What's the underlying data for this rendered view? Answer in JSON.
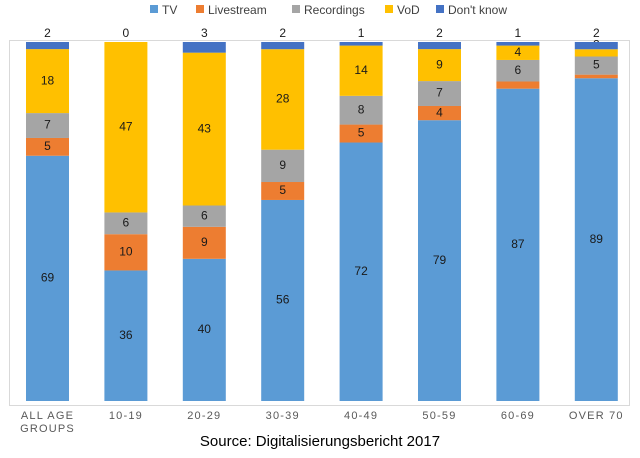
{
  "chart_data": {
    "type": "bar",
    "stacked": true,
    "percent": true,
    "categories": [
      "ALL AGE GROUPS",
      "10-19",
      "20-29",
      "30-39",
      "40-49",
      "50-59",
      "60-69",
      "OVER 70"
    ],
    "category_lines": [
      [
        "ALL AGE",
        "GROUPS"
      ],
      [
        "10-19"
      ],
      [
        "20-29"
      ],
      [
        "30-39"
      ],
      [
        "40-49"
      ],
      [
        "50-59"
      ],
      [
        "60-69"
      ],
      [
        "OVER 70"
      ]
    ],
    "series": [
      {
        "name": "TV",
        "color": "#5B9BD5",
        "values": [
          69,
          36,
          40,
          56,
          72,
          79,
          87,
          89
        ]
      },
      {
        "name": "Livestream",
        "color": "#ED7D31",
        "values": [
          5,
          10,
          9,
          5,
          5,
          4,
          2,
          1
        ]
      },
      {
        "name": "Recordings",
        "color": "#A5A5A5",
        "values": [
          7,
          6,
          6,
          9,
          8,
          7,
          6,
          5
        ]
      },
      {
        "name": "VoD",
        "color": "#FFC000",
        "values": [
          18,
          47,
          43,
          28,
          14,
          9,
          4,
          2
        ]
      },
      {
        "name": "Don't know",
        "color": "#4472C4",
        "values": [
          2,
          0,
          3,
          2,
          1,
          2,
          1,
          2
        ]
      }
    ],
    "legend_position": "top",
    "grid": false,
    "source": "Source: Digitalisierungsbericht 2017"
  }
}
